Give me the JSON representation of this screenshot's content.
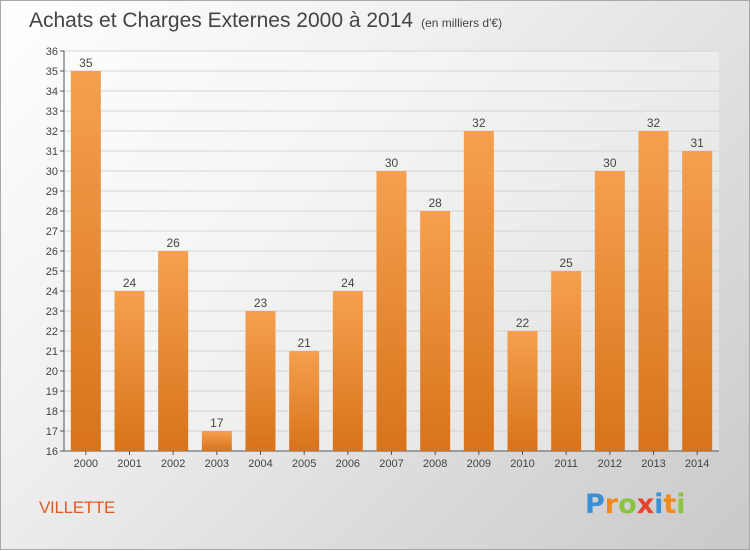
{
  "title": "Achats et Charges Externes 2000 à 2014",
  "subtitle": "(en milliers d'€)",
  "commune": "VILLETTE",
  "logo": {
    "text": "Proxiti",
    "letters": [
      {
        "ch": "P",
        "color": "#3a8fd6"
      },
      {
        "ch": "r",
        "color": "#f08a1c"
      },
      {
        "ch": "o",
        "color": "#8bc43f"
      },
      {
        "ch": "x",
        "color": "#e8432e"
      },
      {
        "ch": "i",
        "color": "#3a8fd6"
      },
      {
        "ch": "t",
        "color": "#f08a1c"
      },
      {
        "ch": "i",
        "color": "#8bc43f"
      }
    ]
  },
  "colors": {
    "bar_top": "#f5a04e",
    "bar_bottom": "#d8731a",
    "axis": "#555555",
    "grid": "#d4d4d4",
    "text": "#444444"
  },
  "chart_data": {
    "type": "bar",
    "categories": [
      "2000",
      "2001",
      "2002",
      "2003",
      "2004",
      "2005",
      "2006",
      "2007",
      "2008",
      "2009",
      "2010",
      "2011",
      "2012",
      "2013",
      "2014"
    ],
    "values": [
      35,
      24,
      26,
      17,
      23,
      21,
      24,
      30,
      28,
      32,
      22,
      25,
      30,
      32,
      31
    ],
    "ylim": [
      16,
      36
    ],
    "yticks": [
      16,
      17,
      18,
      19,
      20,
      21,
      22,
      23,
      24,
      25,
      26,
      27,
      28,
      29,
      30,
      31,
      32,
      33,
      34,
      35,
      36
    ],
    "grid": true,
    "data_labels": true
  }
}
